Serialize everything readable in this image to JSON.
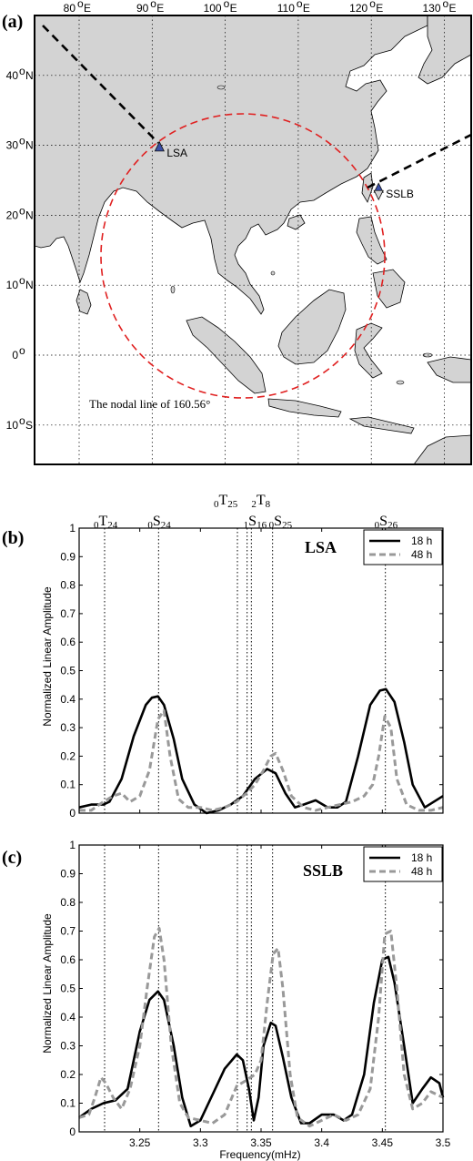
{
  "panels": {
    "a": {
      "label": "(a)"
    },
    "b": {
      "label": "(b)"
    },
    "c": {
      "label": "(c)"
    }
  },
  "map": {
    "lon_ticks": [
      {
        "deg": "80",
        "unit": "E",
        "lon": 80
      },
      {
        "deg": "90",
        "unit": "E",
        "lon": 90
      },
      {
        "deg": "100",
        "unit": "E",
        "lon": 100
      },
      {
        "deg": "110",
        "unit": "E",
        "lon": 110
      },
      {
        "deg": "120",
        "unit": "E",
        "lon": 120
      },
      {
        "deg": "130",
        "unit": "E",
        "lon": 130
      }
    ],
    "lat_ticks": [
      {
        "deg": "40",
        "unit": "N",
        "lat": 40
      },
      {
        "deg": "30",
        "unit": "N",
        "lat": 30
      },
      {
        "deg": "20",
        "unit": "N",
        "lat": 20
      },
      {
        "deg": "10",
        "unit": "N",
        "lat": 10
      },
      {
        "deg": "0",
        "unit": "",
        "lat": 0
      },
      {
        "deg": "10",
        "unit": "S",
        "lat": -10
      }
    ],
    "stations": [
      {
        "name": "LSA",
        "lon": 91.0,
        "lat": 29.7
      },
      {
        "name": "SSLB",
        "lon": 121.0,
        "lat": 23.8
      }
    ],
    "nodal_line_text": "The nodal line of 160.56°",
    "nodal_circle_color": "#e02020",
    "land_color": "#d3d3d3",
    "ocean_color": "#ffffff"
  },
  "mode_labels": [
    {
      "pre": "0",
      "letter": "T",
      "sub": "24",
      "freq": 3.221
    },
    {
      "pre": "0",
      "letter": "S",
      "sub": "24",
      "freq": 3.2655
    },
    {
      "pre": "0",
      "letter": "T",
      "sub": "25",
      "freq": 3.3305
    },
    {
      "pre": "2",
      "letter": "T",
      "sub": "8",
      "freq": 3.342
    },
    {
      "pre": "1",
      "letter": "S",
      "sub": "16",
      "freq": 3.3385
    },
    {
      "pre": "0",
      "letter": "S",
      "sub": "25",
      "freq": 3.3595
    },
    {
      "pre": "0",
      "letter": "S",
      "sub": "26",
      "freq": 3.4525
    }
  ],
  "chart_data": [
    {
      "type": "line",
      "station_title": "LSA",
      "ylabel": "Normalized Linear Amplitude",
      "xlabel": "",
      "xlim": [
        3.2,
        3.5
      ],
      "ylim": [
        0,
        1
      ],
      "y_ticks": [
        "0",
        "0.1",
        "0.2",
        "0.3",
        "0.4",
        "0.5",
        "0.6",
        "0.7",
        "0.8",
        "0.9",
        "1"
      ],
      "x_ticks": [],
      "legend_position": "top-right",
      "series": [
        {
          "name": "18 h",
          "style": "solid",
          "color": "#000000",
          "x": [
            3.2,
            3.21,
            3.22,
            3.225,
            3.235,
            3.245,
            3.255,
            3.26,
            3.265,
            3.27,
            3.278,
            3.285,
            3.295,
            3.305,
            3.315,
            3.325,
            3.335,
            3.345,
            3.355,
            3.362,
            3.37,
            3.378,
            3.385,
            3.395,
            3.405,
            3.413,
            3.42,
            3.43,
            3.44,
            3.448,
            3.453,
            3.46,
            3.468,
            3.475,
            3.485,
            3.5
          ],
          "y": [
            0.02,
            0.03,
            0.03,
            0.04,
            0.12,
            0.27,
            0.38,
            0.405,
            0.41,
            0.38,
            0.26,
            0.12,
            0.03,
            0.0,
            0.01,
            0.03,
            0.06,
            0.12,
            0.155,
            0.14,
            0.07,
            0.02,
            0.03,
            0.045,
            0.02,
            0.02,
            0.04,
            0.2,
            0.38,
            0.43,
            0.435,
            0.39,
            0.25,
            0.1,
            0.02,
            0.06
          ]
        },
        {
          "name": "48 h",
          "style": "dashed",
          "color": "#999999",
          "x": [
            3.2,
            3.21,
            3.22,
            3.228,
            3.235,
            3.242,
            3.25,
            3.258,
            3.265,
            3.27,
            3.275,
            3.282,
            3.29,
            3.3,
            3.31,
            3.32,
            3.33,
            3.338,
            3.345,
            3.352,
            3.358,
            3.362,
            3.368,
            3.375,
            3.385,
            3.395,
            3.405,
            3.415,
            3.425,
            3.435,
            3.442,
            3.447,
            3.452,
            3.457,
            3.462,
            3.47,
            3.48,
            3.49,
            3.5
          ],
          "y": [
            0.01,
            0.01,
            0.04,
            0.06,
            0.07,
            0.04,
            0.06,
            0.15,
            0.33,
            0.36,
            0.2,
            0.05,
            0.02,
            0.02,
            0.01,
            0.02,
            0.04,
            0.07,
            0.1,
            0.15,
            0.2,
            0.21,
            0.15,
            0.06,
            0.02,
            0.01,
            0.02,
            0.03,
            0.04,
            0.06,
            0.1,
            0.2,
            0.34,
            0.3,
            0.12,
            0.03,
            0.01,
            0.01,
            0.02
          ]
        }
      ]
    },
    {
      "type": "line",
      "station_title": "SSLB",
      "ylabel": "Normalized Linear Amplitude",
      "xlabel": "Frequency(mHz)",
      "xlim": [
        3.2,
        3.5
      ],
      "ylim": [
        0,
        1
      ],
      "y_ticks": [
        "0",
        "0.1",
        "0.2",
        "0.3",
        "0.4",
        "0.5",
        "0.6",
        "0.7",
        "0.8",
        "0.9",
        "1"
      ],
      "x_ticks": [
        {
          "label": "3.25",
          "value": 3.25
        },
        {
          "label": "3.3",
          "value": 3.3
        },
        {
          "label": "3.35",
          "value": 3.35
        },
        {
          "label": "3.4",
          "value": 3.4
        },
        {
          "label": "3.45",
          "value": 3.45
        },
        {
          "label": "3.5",
          "value": 3.5
        }
      ],
      "legend_position": "top-right",
      "series": [
        {
          "name": "18 h",
          "style": "solid",
          "color": "#000000",
          "x": [
            3.2,
            3.21,
            3.22,
            3.23,
            3.24,
            3.25,
            3.258,
            3.265,
            3.27,
            3.278,
            3.285,
            3.292,
            3.3,
            3.31,
            3.32,
            3.33,
            3.335,
            3.34,
            3.344,
            3.348,
            3.352,
            3.358,
            3.362,
            3.368,
            3.375,
            3.383,
            3.39,
            3.4,
            3.41,
            3.418,
            3.425,
            3.435,
            3.443,
            3.45,
            3.455,
            3.46,
            3.468,
            3.475,
            3.483,
            3.49,
            3.497,
            3.5
          ],
          "y": [
            0.05,
            0.08,
            0.1,
            0.11,
            0.15,
            0.35,
            0.46,
            0.49,
            0.46,
            0.3,
            0.12,
            0.02,
            0.04,
            0.13,
            0.22,
            0.27,
            0.25,
            0.15,
            0.04,
            0.12,
            0.3,
            0.38,
            0.37,
            0.26,
            0.12,
            0.03,
            0.03,
            0.06,
            0.06,
            0.04,
            0.06,
            0.2,
            0.45,
            0.6,
            0.61,
            0.52,
            0.3,
            0.1,
            0.15,
            0.19,
            0.17,
            0.12
          ]
        },
        {
          "name": "48 h",
          "style": "dashed",
          "color": "#999999",
          "x": [
            3.2,
            3.208,
            3.213,
            3.218,
            3.222,
            3.228,
            3.235,
            3.242,
            3.25,
            3.256,
            3.262,
            3.266,
            3.27,
            3.276,
            3.283,
            3.29,
            3.3,
            3.31,
            3.32,
            3.33,
            3.338,
            3.345,
            3.35,
            3.355,
            3.36,
            3.364,
            3.368,
            3.374,
            3.38,
            3.39,
            3.4,
            3.41,
            3.42,
            3.43,
            3.44,
            3.447,
            3.452,
            3.457,
            3.462,
            3.468,
            3.475,
            3.483,
            3.49,
            3.5
          ],
          "y": [
            0.05,
            0.06,
            0.12,
            0.19,
            0.17,
            0.12,
            0.08,
            0.15,
            0.3,
            0.5,
            0.68,
            0.71,
            0.6,
            0.3,
            0.1,
            0.05,
            0.04,
            0.03,
            0.06,
            0.16,
            0.18,
            0.2,
            0.25,
            0.45,
            0.62,
            0.64,
            0.5,
            0.2,
            0.05,
            0.02,
            0.04,
            0.06,
            0.04,
            0.06,
            0.15,
            0.4,
            0.69,
            0.7,
            0.5,
            0.2,
            0.08,
            0.1,
            0.14,
            0.12
          ]
        }
      ]
    }
  ]
}
